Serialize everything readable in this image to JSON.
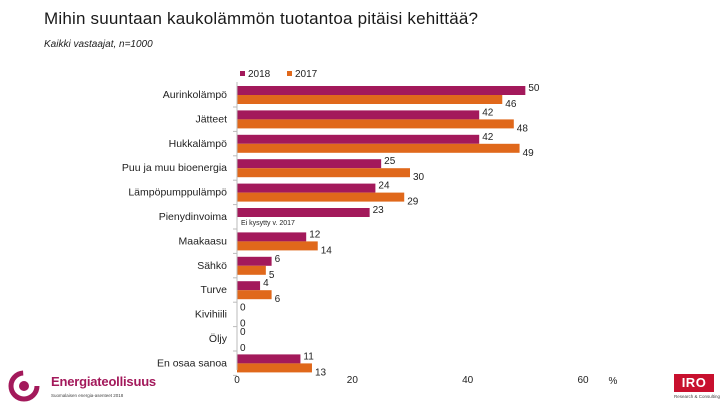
{
  "title": "Mihin suuntaan kaukolämmön tuotantoa pitäisi kehittää?",
  "subtitle": "Kaikki vastaajat, n=1000",
  "colors": {
    "series_2018": "#a3195b",
    "series_2017": "#e0681b"
  },
  "chart_data": {
    "type": "bar",
    "orientation": "horizontal",
    "categories": [
      "Aurinkolämpö",
      "Jätteet",
      "Hukkalämpö",
      "Puu ja muu bioenergia",
      "Lämpöpumppulämpö",
      "Pienydinvoima",
      "Maakaasu",
      "Sähkö",
      "Turve",
      "Kivihiili",
      "Öljy",
      "En osaa sanoa"
    ],
    "series": [
      {
        "name": "2018",
        "values": [
          50,
          42,
          42,
          25,
          24,
          23,
          12,
          6,
          4,
          0,
          0,
          11
        ]
      },
      {
        "name": "2017",
        "values": [
          46,
          48,
          49,
          30,
          29,
          null,
          14,
          5,
          6,
          0,
          0,
          13
        ]
      }
    ],
    "xlim": [
      0,
      60
    ],
    "xticks": [
      0,
      20,
      40,
      60
    ],
    "xunit": "%",
    "legend": "top",
    "annotations": [
      "Ei kysytty v. 2017"
    ]
  },
  "logo_left": {
    "name": "Energiateollisuus",
    "tagline": "Suomalaisen energia-asenteet 2018"
  },
  "logo_right": {
    "name": "IRO",
    "tagline": "Research & Consulting"
  }
}
